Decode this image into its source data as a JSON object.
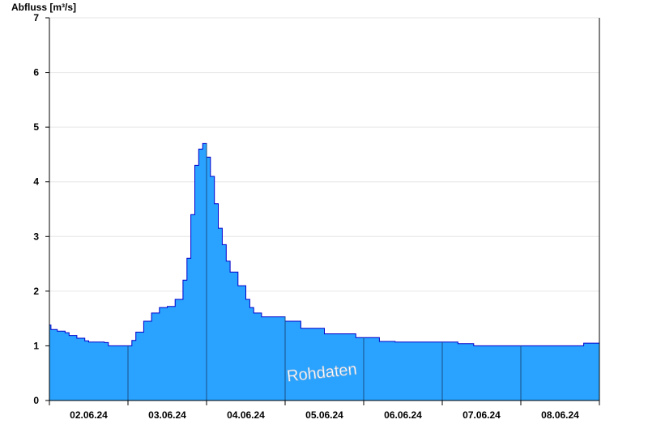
{
  "chart_data": {
    "type": "area",
    "ylabel": "Abfluss [m³/s]",
    "xlabel": "",
    "title": "",
    "watermark": "Rohdaten",
    "ylim": [
      0,
      7
    ],
    "yticks": [
      0,
      1,
      2,
      3,
      4,
      5,
      6,
      7
    ],
    "x_day_range": [
      0,
      7
    ],
    "day_boundaries": [
      1,
      2,
      3,
      4,
      5,
      6
    ],
    "xtick_positions": [
      0.5,
      1.5,
      2.5,
      3.5,
      4.5,
      5.5,
      6.5
    ],
    "xtick_labels": [
      "02.06.24",
      "03.06.24",
      "04.06.24",
      "05.06.24",
      "06.06.24",
      "07.06.24",
      "08.06.24"
    ],
    "grid": true,
    "colors": {
      "fill": "#29a3ff",
      "line": "#0000cc",
      "grid": "#e6e6e6",
      "divider": "#1a4f86"
    },
    "series": [
      {
        "x": [
          0.0,
          0.02,
          0.1,
          0.2,
          0.25,
          0.35,
          0.45,
          0.5,
          0.7,
          0.75,
          1.0,
          1.05,
          1.1,
          1.2,
          1.3,
          1.4,
          1.5,
          1.6,
          1.7,
          1.75,
          1.8,
          1.85,
          1.9,
          1.95,
          2.0,
          2.05,
          2.1,
          2.15,
          2.2,
          2.25,
          2.3,
          2.4,
          2.5,
          2.55,
          2.6,
          2.7,
          2.8,
          2.9,
          3.0,
          3.2,
          3.5,
          3.9,
          4.2,
          4.4,
          4.6,
          4.8,
          5.0,
          5.2,
          5.4,
          5.6,
          6.0,
          6.5,
          6.8,
          7.0
        ],
        "y": [
          1.38,
          1.3,
          1.27,
          1.24,
          1.19,
          1.14,
          1.09,
          1.07,
          1.06,
          1.0,
          1.0,
          1.1,
          1.25,
          1.45,
          1.6,
          1.7,
          1.72,
          1.85,
          2.2,
          2.6,
          3.4,
          4.3,
          4.6,
          4.7,
          4.45,
          4.1,
          3.6,
          3.15,
          2.85,
          2.55,
          2.35,
          2.1,
          1.85,
          1.7,
          1.6,
          1.53,
          1.53,
          1.53,
          1.45,
          1.32,
          1.22,
          1.15,
          1.08,
          1.07,
          1.07,
          1.07,
          1.07,
          1.04,
          1.0,
          1.0,
          1.0,
          1.0,
          1.05,
          1.07
        ]
      }
    ]
  }
}
